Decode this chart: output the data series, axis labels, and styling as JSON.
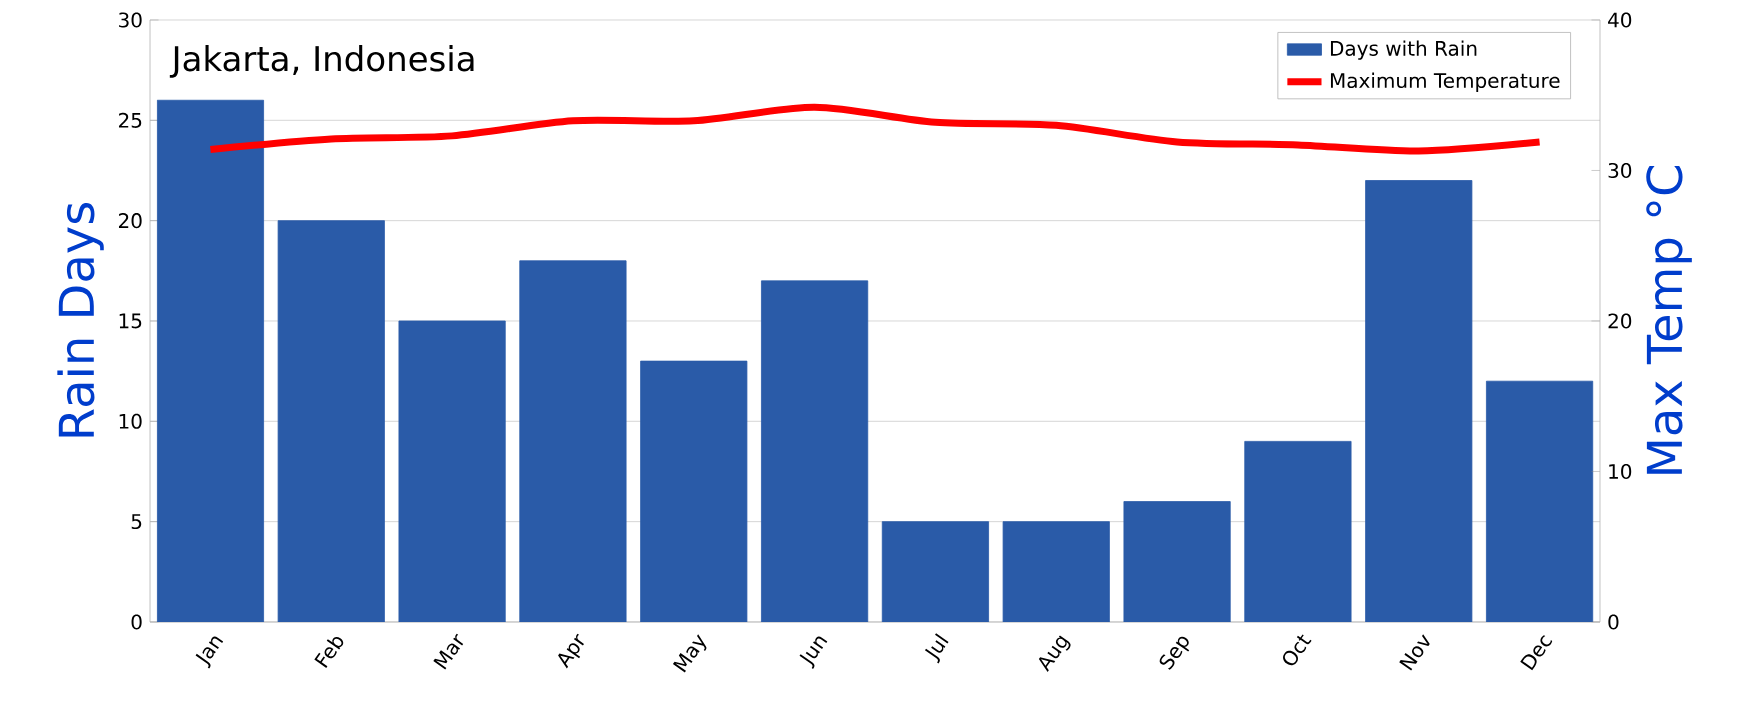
{
  "chart_data": {
    "type": "bar",
    "title": "Jakarta, Indonesia",
    "ylabel": "Rain Days",
    "y2label": "Max Temp °C",
    "categories": [
      "Jan",
      "Feb",
      "Mar",
      "Apr",
      "May",
      "Jun",
      "Jul",
      "Aug",
      "Sep",
      "Oct",
      "Nov",
      "Dec"
    ],
    "series": [
      {
        "name": "Days with Rain",
        "color": "#2a5ba8",
        "values": [
          26,
          20,
          15,
          18,
          13,
          17,
          5,
          5,
          6,
          9,
          22,
          12
        ]
      },
      {
        "name": "Maximum Temperature",
        "type": "line",
        "axis": "y2",
        "color": "#ff0000",
        "values": [
          31.4,
          32.1,
          32.3,
          33.3,
          33.3,
          34.2,
          33.2,
          33.0,
          31.9,
          31.7,
          31.3,
          31.9
        ]
      }
    ],
    "ylim": [
      0,
      30
    ],
    "yticks": [
      0,
      5,
      10,
      15,
      20,
      25,
      30
    ],
    "y2lim": [
      0,
      40
    ],
    "y2ticks": [
      0,
      10,
      20,
      30,
      40
    ],
    "grid": "y",
    "legend": "top right",
    "marker": "none",
    "line_style": "solid"
  }
}
